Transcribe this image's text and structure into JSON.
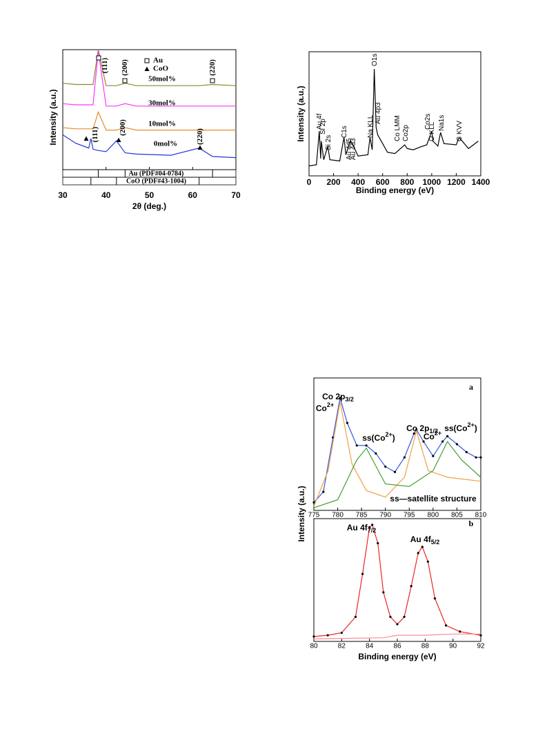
{
  "chart_data": [
    {
      "type": "line",
      "xlabel": "2θ (deg.)",
      "ylabel": "Intensity (a.u.)",
      "xlim": [
        30,
        70
      ],
      "xticks": [
        30,
        40,
        50,
        60,
        70
      ],
      "ylim": [
        0,
        100
      ],
      "x": [
        30,
        33,
        36,
        36.5,
        37,
        38.2,
        40,
        42.4,
        44.4,
        47,
        55,
        61.5,
        64.6,
        70
      ],
      "series": [
        {
          "name": "50mol%",
          "color": "#8a8a2a",
          "values": [
            72,
            71,
            71,
            71,
            71,
            100,
            70,
            70,
            72,
            70,
            70,
            70,
            71,
            70
          ]
        },
        {
          "name": "30mol%",
          "color": "#ff33ff",
          "values": [
            55,
            54,
            54,
            54,
            54,
            99,
            53,
            53,
            55,
            53,
            53,
            53,
            53,
            53
          ]
        },
        {
          "name": "10mol%",
          "color": "#e88a2a",
          "values": [
            35,
            34,
            34,
            34,
            34,
            48,
            33,
            33,
            35,
            33,
            33,
            33,
            33,
            33
          ]
        },
        {
          "name": "0mol%",
          "color": "#2233dd",
          "values": [
            29,
            22,
            18,
            26,
            17,
            16,
            15,
            24,
            14,
            13,
            12,
            18,
            11,
            10
          ]
        }
      ],
      "legend": [
        {
          "label": "Au",
          "marker": "square"
        },
        {
          "label": "CoO",
          "marker": "triangle"
        }
      ],
      "annotations": [
        {
          "text": "(111)",
          "marker": "square"
        },
        {
          "text": "(200)",
          "marker": "square"
        },
        {
          "text": "(220)",
          "marker": "square"
        },
        {
          "text": "(111)",
          "marker": "triangle"
        },
        {
          "text": "(200)",
          "marker": "triangle"
        },
        {
          "text": "(220)",
          "marker": "triangle"
        }
      ],
      "references": [
        {
          "label": "Au (PDF#04-0784)",
          "peaks": [
            38.2,
            44.4,
            64.6
          ]
        },
        {
          "label": "CoO (PDF#43-1004)",
          "peaks": [
            36.5,
            42.4,
            61.5
          ]
        }
      ]
    },
    {
      "type": "line",
      "xlabel": "Binding energy (eV)",
      "ylabel": "Intensity (a.u.)",
      "xlim": [
        0,
        1400
      ],
      "xticks": [
        0,
        200,
        400,
        600,
        800,
        1000,
        1200,
        1400
      ],
      "ylim": [
        0,
        100
      ],
      "x": [
        0,
        60,
        84,
        95,
        100,
        120,
        153,
        170,
        250,
        285,
        300,
        335,
        353,
        400,
        480,
        497,
        515,
        532,
        547,
        560,
        640,
        700,
        780,
        800,
        850,
        900,
        960,
        1000,
        1010,
        1050,
        1072,
        1100,
        1200,
        1223,
        1300,
        1380
      ],
      "series": [
        {
          "color": "#000000",
          "values": [
            8,
            9,
            36,
            14,
            28,
            13,
            24,
            13,
            12,
            31,
            17,
            28,
            26,
            16,
            17,
            31,
            21,
            86,
            39,
            33,
            19,
            18,
            25,
            22,
            21,
            23,
            25,
            36,
            28,
            24,
            35,
            26,
            25,
            31,
            22,
            28
          ]
        }
      ],
      "annotations": [
        {
          "text": "Au 4f",
          "color": "#e02020"
        },
        {
          "text": "Si 2p"
        },
        {
          "text": "Si 2s"
        },
        {
          "text": "C1s"
        },
        {
          "text": "Au 4d5"
        },
        {
          "text": "Au 4d3"
        },
        {
          "text": "Na KLL"
        },
        {
          "text": "O1s"
        },
        {
          "text": "Au 4p3"
        },
        {
          "text": "Co LMM"
        },
        {
          "text": "Co2p",
          "color": "#e02020"
        },
        {
          "text": "Co2s"
        },
        {
          "text": "O KLL"
        },
        {
          "text": "Na1s"
        },
        {
          "text": "C KVV"
        }
      ]
    },
    {
      "type": "line",
      "ylabel": "Intensity (a.u.)",
      "xlim": [
        775,
        810
      ],
      "xticks": [
        775,
        780,
        785,
        790,
        795,
        800,
        805,
        810
      ],
      "ylim": [
        0,
        100
      ],
      "x": [
        775,
        777,
        779,
        780.5,
        782,
        784,
        786,
        788,
        790,
        792,
        794,
        796,
        796.5,
        798,
        800,
        802,
        803,
        805,
        807,
        809,
        810
      ],
      "series": [
        {
          "color": "#3355dd",
          "style": "line",
          "values": [
            6,
            14,
            55,
            85,
            66,
            49,
            49,
            43,
            33,
            29,
            40,
            58,
            61,
            52,
            41,
            52,
            56,
            50,
            44,
            40,
            40
          ]
        },
        {
          "color": "#000000",
          "style": "dots",
          "values": [
            6,
            14,
            55,
            85,
            66,
            49,
            49,
            43,
            33,
            29,
            40,
            58,
            61,
            52,
            41,
            52,
            56,
            50,
            44,
            40,
            40
          ]
        },
        {
          "color": "#f0a040",
          "style": "line",
          "x": [
            775,
            778,
            780.5,
            783,
            786,
            790,
            794,
            796.5,
            799,
            803,
            810
          ],
          "values": [
            3,
            30,
            82,
            35,
            15,
            10,
            25,
            60,
            30,
            25,
            22
          ]
        },
        {
          "color": "#40a030",
          "style": "line",
          "x": [
            775,
            780,
            784,
            786,
            790,
            795,
            800,
            803,
            806,
            810
          ],
          "values": [
            2,
            8,
            38,
            47,
            20,
            18,
            30,
            52,
            38,
            25
          ]
        }
      ],
      "annotations": [
        {
          "text": "a",
          "font": "serif"
        },
        {
          "text": "Co 2p",
          "sub": "3/2"
        },
        {
          "text": "Co",
          "sup": "2+"
        },
        {
          "text": "ss(Co",
          "sup": "2+",
          "tail": ")"
        },
        {
          "text": "Co 2p",
          "sub": "1/2"
        },
        {
          "text": "Co",
          "sup": "2+"
        },
        {
          "text": "ss(Co",
          "sup": "2+",
          "tail": ")"
        },
        {
          "text": "ss—satellite structure"
        }
      ]
    },
    {
      "type": "line",
      "xlabel": "Binding energy (eV)",
      "xlim": [
        80,
        92
      ],
      "xticks": [
        80,
        82,
        84,
        86,
        88,
        90,
        92
      ],
      "ylim": [
        0,
        100
      ],
      "x": [
        80,
        81,
        82,
        83,
        83.5,
        84,
        84.2,
        84.6,
        85,
        85.5,
        86,
        86.5,
        87,
        87.5,
        87.8,
        88.2,
        88.7,
        89.5,
        90.5,
        92
      ],
      "series": [
        {
          "color": "#ee2222",
          "style": "line",
          "values": [
            4,
            5,
            7,
            20,
            55,
            93,
            95,
            80,
            40,
            20,
            14,
            20,
            45,
            72,
            77,
            65,
            35,
            13,
            8,
            5
          ]
        },
        {
          "color": "#000000",
          "style": "dots",
          "values": [
            4,
            5,
            7,
            20,
            55,
            93,
            95,
            80,
            40,
            20,
            14,
            20,
            45,
            72,
            77,
            65,
            35,
            13,
            8,
            5
          ]
        },
        {
          "color": "#ff8899",
          "style": "line",
          "x": [
            80,
            85,
            86,
            88,
            90,
            92
          ],
          "values": [
            2,
            3,
            5,
            5,
            6,
            6
          ]
        }
      ],
      "annotations": [
        {
          "text": "b",
          "font": "serif"
        },
        {
          "text": "Au 4f",
          "sub": "7/2"
        },
        {
          "text": "Au 4f",
          "sub": "5/2"
        }
      ]
    }
  ]
}
